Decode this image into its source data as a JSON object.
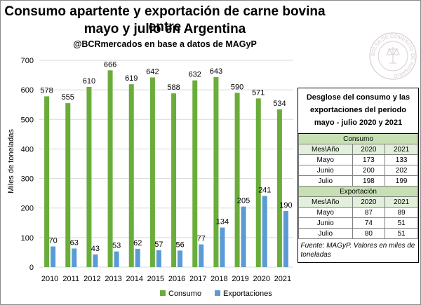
{
  "header": {
    "title_line1": "Consumo apartente y exportación de carne bovina entre",
    "title_line2": "mayo y julio en Argentina",
    "subtitle": "@BCRmercados en base a datos de MAGyP"
  },
  "seal_text": "BOLSA DE COMERCIO DE ROSARIO",
  "colors": {
    "consumo": "#6aad3a",
    "exportaciones": "#5b9bd5",
    "grid": "#d9d9d9",
    "table_section": "#c6e0b4",
    "table_header": "#e2efda"
  },
  "chart_data": {
    "type": "bar",
    "categories": [
      "2010",
      "2011",
      "2012",
      "2013",
      "2014",
      "2015",
      "2016",
      "2017",
      "2018",
      "2019",
      "2020",
      "2021"
    ],
    "series": [
      {
        "name": "Consumo",
        "values": [
          578,
          555,
          610,
          666,
          619,
          642,
          588,
          632,
          643,
          590,
          571,
          534
        ]
      },
      {
        "name": "Exportaciones",
        "values": [
          70,
          63,
          43,
          53,
          62,
          57,
          56,
          77,
          134,
          205,
          241,
          190
        ]
      }
    ],
    "ylabel": "Miles de toneladas",
    "ylim": [
      0,
      700
    ],
    "yticks": [
      0,
      100,
      200,
      300,
      400,
      500,
      600,
      700
    ],
    "grid": true,
    "legend_position": "bottom"
  },
  "table": {
    "title": "Desglose del consumo y las exportaciones del período mayo - julio 2020 y 2021",
    "col_header": "Mes\\Año",
    "years": [
      "2020",
      "2021"
    ],
    "consumo_label": "Consumo",
    "consumo_rows": [
      {
        "month": "Mayo",
        "v2020": "173",
        "v2021": "133"
      },
      {
        "month": "Junio",
        "v2020": "200",
        "v2021": "202"
      },
      {
        "month": "Julio",
        "v2020": "198",
        "v2021": "199"
      }
    ],
    "export_label": "Exportación",
    "export_rows": [
      {
        "month": "Mayo",
        "v2020": "87",
        "v2021": "89"
      },
      {
        "month": "Junio",
        "v2020": "74",
        "v2021": "51"
      },
      {
        "month": "Julio",
        "v2020": "80",
        "v2021": "51"
      }
    ],
    "footnote": "Fuente: MAGyP. Valores en miles de toneladas"
  }
}
